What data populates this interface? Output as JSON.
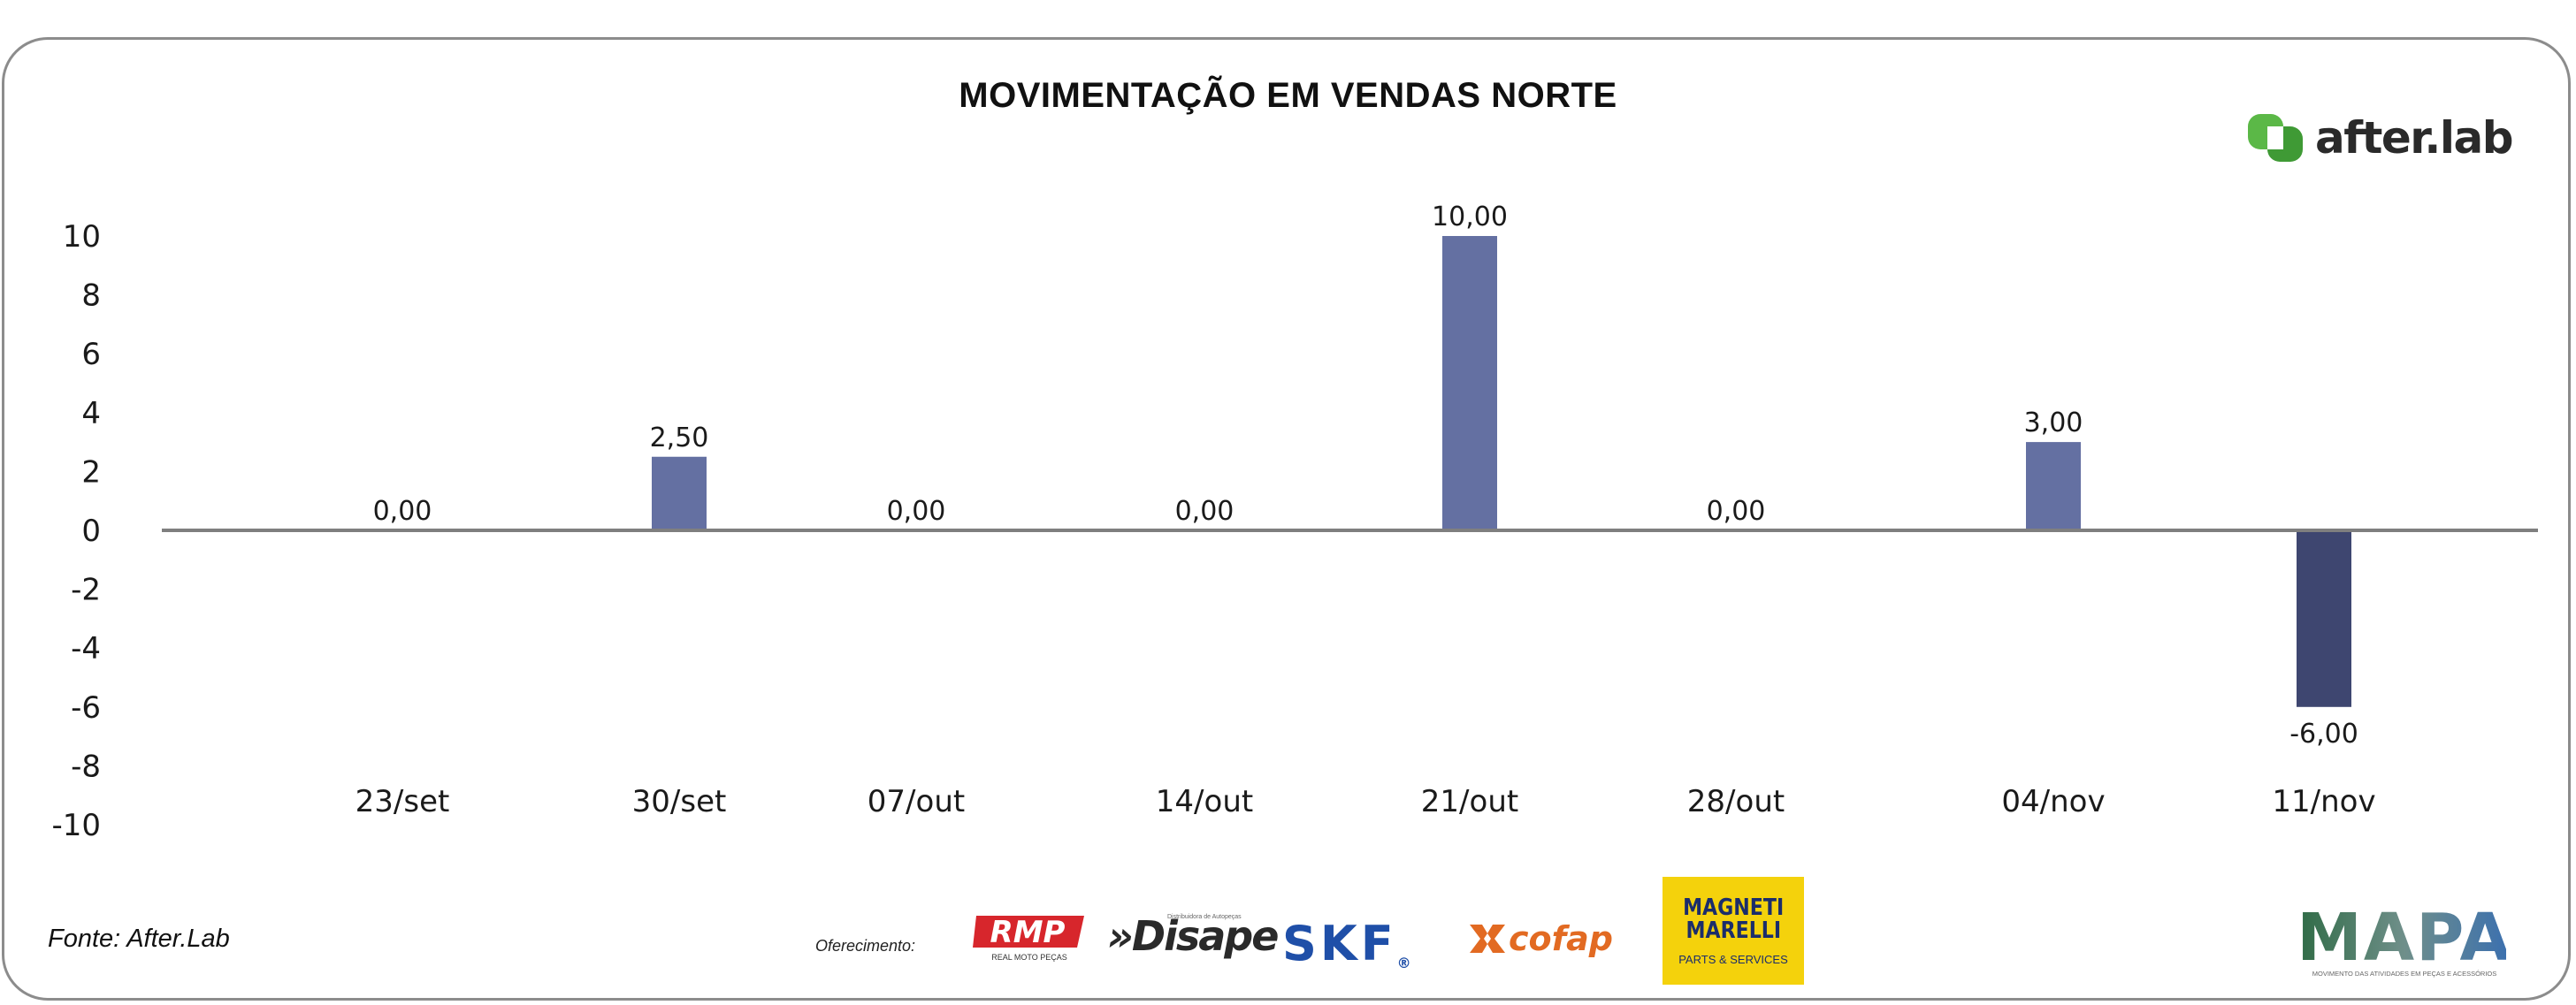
{
  "title": "MOVIMENTAÇÃO EM VENDAS NORTE",
  "brand": {
    "name": "after.lab",
    "accent": "#5bb847"
  },
  "source": "Fonte: After.Lab",
  "sponsor_label": "Oferecimento:",
  "sponsors": {
    "rmp": {
      "name": "RMP",
      "tagline": "REAL MOTO PEÇAS"
    },
    "disape": {
      "name": "»Disape",
      "tagline": "Distribuidora de Autopeças"
    },
    "skf": {
      "name": "SKF",
      "mark": "®"
    },
    "cofap": {
      "name": "cofap"
    },
    "magneti": {
      "line1": "MAGNETI",
      "line2": "MARELLI",
      "tagline": "PARTS & SERVICES"
    },
    "mapa": {
      "name": "MAPA",
      "tagline": "MOVIMENTO DAS ATIVIDADES EM PEÇAS E ACESSÓRIOS"
    }
  },
  "chart_data": {
    "type": "bar",
    "title": "MOVIMENTAÇÃO EM VENDAS NORTE",
    "xlabel": "",
    "ylabel": "",
    "ylim": [
      -10,
      10
    ],
    "yticks": [
      10,
      8,
      6,
      4,
      2,
      0,
      -2,
      -4,
      -6,
      -8,
      -10
    ],
    "grid": false,
    "legend": "none",
    "categories": [
      "23/set",
      "30/set",
      "07/out",
      "14/out",
      "21/out",
      "28/out",
      "04/nov",
      "11/nov"
    ],
    "values": [
      0.0,
      2.5,
      0.0,
      0.0,
      10.0,
      0.0,
      3.0,
      -6.0
    ],
    "data_labels": [
      "0,00",
      "2,50",
      "0,00",
      "0,00",
      "10,00",
      "0,00",
      "3,00",
      "-6,00"
    ],
    "colors": {
      "positive": "#6470a2",
      "negative": "#3e4670",
      "axis": "#7f7f7f"
    }
  }
}
